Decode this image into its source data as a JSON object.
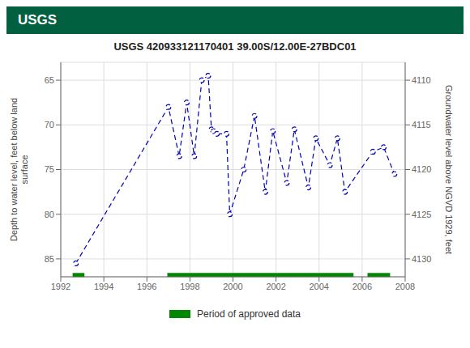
{
  "chart_data": {
    "type": "line",
    "title": "USGS 420933121170401 39.00S/12.00E-27BDC01",
    "annotations": [
      "USGS"
    ],
    "header_color": "#006040",
    "y_label": "Depth to water level, feet below land\nsurface",
    "y2_label": "Groundwater level above NGVD 1929, feet",
    "x": [
      1992.7,
      1997.0,
      1997.5,
      1997.85,
      1998.2,
      1998.55,
      1998.85,
      1999.0,
      1999.1,
      1999.25,
      1999.7,
      1999.85,
      2000.5,
      2001.0,
      2001.5,
      2001.85,
      2002.5,
      2002.85,
      2003.5,
      2003.85,
      2004.5,
      2004.85,
      2005.2,
      2006.5,
      2007.0,
      2007.5
    ],
    "values": [
      85.5,
      68.0,
      73.5,
      67.5,
      73.5,
      65.0,
      64.5,
      70.5,
      70.7,
      71.0,
      71.0,
      80.0,
      75.0,
      69.0,
      77.5,
      70.7,
      76.5,
      70.5,
      77.0,
      71.5,
      74.5,
      71.5,
      77.5,
      73.0,
      72.5,
      75.5
    ],
    "color": "#0000bb",
    "line_style": "dashed",
    "marker": "circle",
    "xlim": [
      1992,
      2008
    ],
    "xticks": [
      1992,
      1994,
      1996,
      1998,
      2000,
      2002,
      2004,
      2006,
      2008
    ],
    "ylim": [
      87,
      63
    ],
    "yticks": [
      65,
      70,
      75,
      80,
      85
    ],
    "y2lim": [
      4132,
      4108
    ],
    "y2ticks": [
      4110,
      4115,
      4120,
      4125,
      4130
    ],
    "grid": true,
    "approved": {
      "name": "Period of approved data",
      "color": "#008800",
      "y": 86.8,
      "periods": [
        [
          1992.55,
          1993.1
        ],
        [
          1996.95,
          2005.6
        ],
        [
          2006.25,
          2007.3
        ]
      ]
    }
  }
}
